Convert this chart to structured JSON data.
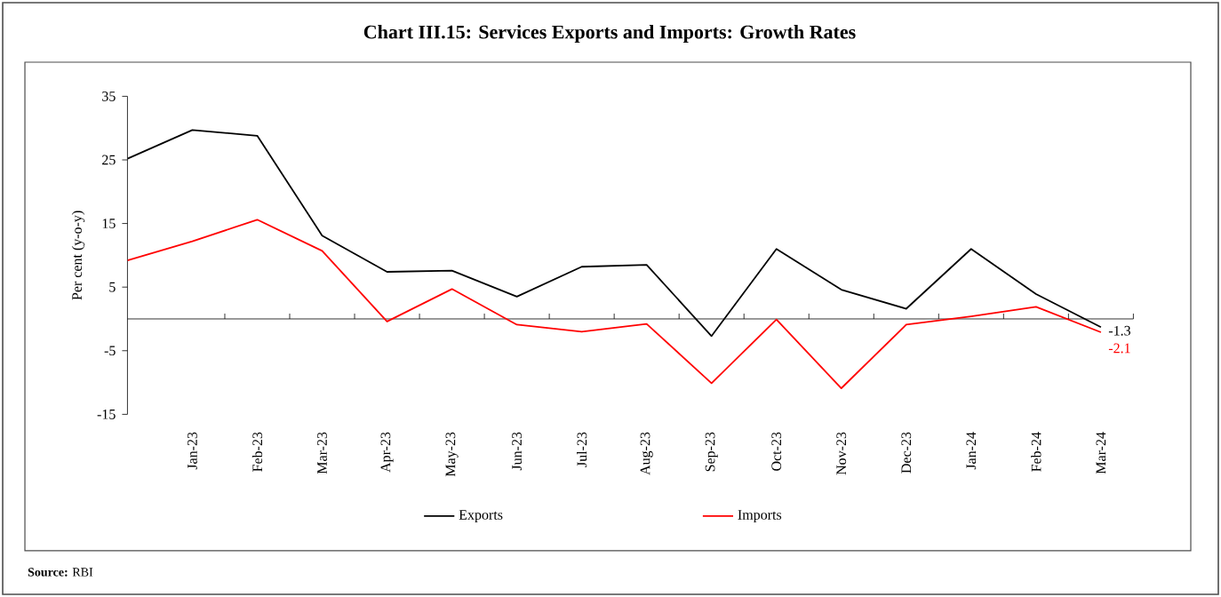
{
  "chart_data": {
    "type": "line",
    "title": "Chart III.15: Services Exports and Imports: Growth Rates",
    "ylabel": "Per cent (y-o-y)",
    "categories": [
      null,
      "Jan-23",
      "Feb-23",
      "Mar-23",
      "Apr-23",
      "May-23",
      "Jun-23",
      "Jul-23",
      "Aug-23",
      "Sep-23",
      "Oct-23",
      "Nov-23",
      "Dec-23",
      "Jan-24",
      "Feb-24",
      "Mar-24"
    ],
    "series": [
      {
        "name": "Exports",
        "color": "#000000",
        "values": [
          25.2,
          29.7,
          28.8,
          13.1,
          7.4,
          7.6,
          3.5,
          8.2,
          8.5,
          -2.7,
          11.0,
          4.6,
          1.6,
          11.0,
          3.9,
          -1.3
        ],
        "value_labels": [
          null,
          null,
          null,
          null,
          null,
          null,
          null,
          null,
          null,
          null,
          null,
          null,
          null,
          null,
          null,
          "-1.3"
        ]
      },
      {
        "name": "Imports",
        "color": "#ff0000",
        "values": [
          9.2,
          12.2,
          15.6,
          10.7,
          -0.4,
          4.7,
          -0.9,
          -2.0,
          -0.8,
          -10.1,
          -0.1,
          -10.9,
          -0.9,
          0.4,
          1.9,
          -2.1
        ],
        "value_labels": [
          null,
          null,
          null,
          null,
          null,
          null,
          null,
          null,
          null,
          null,
          null,
          null,
          null,
          null,
          null,
          "-2.1"
        ]
      }
    ],
    "ylim": [
      -15,
      35
    ],
    "yticks": [
      -15,
      -5,
      5,
      15,
      25,
      35
    ],
    "grid": false,
    "legend": "bottom",
    "marker": "none",
    "line_style": "solid",
    "annotations": [
      "**Source:** RBI"
    ]
  }
}
